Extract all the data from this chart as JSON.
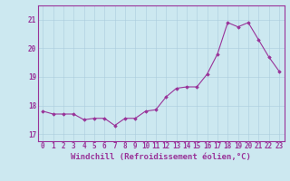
{
  "x": [
    0,
    1,
    2,
    3,
    4,
    5,
    6,
    7,
    8,
    9,
    10,
    11,
    12,
    13,
    14,
    15,
    16,
    17,
    18,
    19,
    20,
    21,
    22,
    23
  ],
  "y": [
    17.8,
    17.7,
    17.7,
    17.7,
    17.5,
    17.55,
    17.55,
    17.3,
    17.55,
    17.55,
    17.8,
    17.85,
    18.3,
    18.6,
    18.65,
    18.65,
    19.1,
    19.8,
    20.9,
    20.75,
    20.9,
    20.3,
    19.7,
    19.2
  ],
  "ylim": [
    16.75,
    21.5
  ],
  "yticks": [
    17,
    18,
    19,
    20,
    21
  ],
  "xticks": [
    0,
    1,
    2,
    3,
    4,
    5,
    6,
    7,
    8,
    9,
    10,
    11,
    12,
    13,
    14,
    15,
    16,
    17,
    18,
    19,
    20,
    21,
    22,
    23
  ],
  "line_color": "#993399",
  "marker_color": "#993399",
  "bg_color": "#cce8f0",
  "grid_color": "#aaccdd",
  "xlabel": "Windchill (Refroidissement éolien,°C)",
  "xlabel_color": "#993399",
  "tick_color": "#993399",
  "spine_color": "#993399",
  "tick_fontsize": 5.5,
  "label_fontsize": 6.5
}
